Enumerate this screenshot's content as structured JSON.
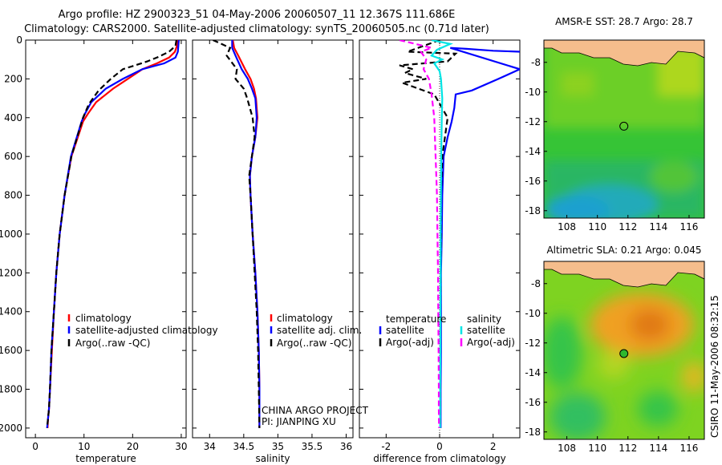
{
  "header": {
    "title_line1": "Argo profile: HZ 2900323_51 04-May-2006 20060507_11 12.367S 111.686E",
    "title_line2": "Climatology: CARS2000. Satellite-adjusted climatology: synTS_20060505.nc (0.71d later)"
  },
  "credit": "CSIRO 11-May-2006 08:32:15",
  "project_note": [
    "CHINA ARGO PROJECT",
    "PI: JIANPING XU"
  ],
  "colors": {
    "climatology": "#ff0000",
    "satellite": "#0000ff",
    "argo": "#000000",
    "cyan": "#00e5e5",
    "magenta": "#ff00ff",
    "land": "#f5bd8c"
  },
  "chart_data": [
    {
      "type": "line",
      "xlabel": "temperature",
      "ylabel": "",
      "xlim": [
        -2,
        31
      ],
      "ylim": [
        0,
        2050
      ],
      "y_reversed": true,
      "xticks": [
        0,
        10,
        20,
        30
      ],
      "yticks": [
        0,
        200,
        400,
        600,
        800,
        1000,
        1200,
        1400,
        1600,
        1800,
        2000
      ],
      "legend": [
        "climatology",
        "satellite-adjusted climatology",
        "Argo(..raw -QC)"
      ],
      "series": [
        {
          "name": "climatology",
          "color": "#ff0000",
          "dash": "",
          "x": [
            29.2,
            29.1,
            28.7,
            27.5,
            25.0,
            22.0,
            19.0,
            16.0,
            12.5,
            10.8,
            9.8,
            7.4,
            6.0,
            5.0,
            4.3,
            3.8,
            3.4,
            3.0,
            2.8,
            2.6,
            2.5
          ],
          "y": [
            0,
            30,
            60,
            90,
            120,
            150,
            200,
            250,
            320,
            380,
            420,
            600,
            800,
            1000,
            1200,
            1400,
            1600,
            1800,
            1900,
            1950,
            2000
          ]
        },
        {
          "name": "satellite-adjusted climatology",
          "color": "#0000ff",
          "dash": "",
          "x": [
            29.5,
            29.4,
            29.3,
            28.8,
            26.5,
            22.0,
            18.0,
            14.5,
            11.5,
            10.2,
            9.5,
            7.3,
            6.0,
            5.0,
            4.3,
            3.8,
            3.3,
            3.0,
            2.8,
            2.6,
            2.4
          ],
          "y": [
            0,
            30,
            60,
            90,
            120,
            150,
            200,
            250,
            320,
            380,
            420,
            600,
            800,
            1000,
            1200,
            1400,
            1600,
            1800,
            1900,
            1950,
            2000
          ]
        },
        {
          "name": "Argo(..raw -QC)",
          "color": "#000000",
          "dash": "7,4",
          "x": [
            29.0,
            28.8,
            27.5,
            25.0,
            23.0,
            20.5,
            18.0,
            15.5,
            13.0,
            11.0,
            9.8,
            7.4,
            6.0,
            5.0,
            4.3,
            3.8,
            3.3,
            3.0,
            2.8,
            2.6,
            2.4
          ],
          "y": [
            0,
            30,
            60,
            90,
            110,
            130,
            150,
            200,
            260,
            330,
            400,
            600,
            800,
            1000,
            1200,
            1400,
            1600,
            1800,
            1900,
            1950,
            2000
          ]
        }
      ]
    },
    {
      "type": "line",
      "xlabel": "salinity",
      "ylabel": "",
      "xlim": [
        33.75,
        36.1
      ],
      "ylim": [
        0,
        2050
      ],
      "y_reversed": true,
      "xticks": [
        34,
        34.5,
        35,
        35.5,
        36
      ],
      "xtick_labels": [
        "34",
        "34.5",
        "35",
        "35.5",
        "36"
      ],
      "legend": [
        "climatology",
        "satellite adj. clim.",
        "Argo(..raw -QC)"
      ],
      "series": [
        {
          "name": "climatology",
          "color": "#ff0000",
          "dash": "",
          "x": [
            34.34,
            34.36,
            34.42,
            34.52,
            34.6,
            34.65,
            34.68,
            34.7,
            34.67,
            34.62,
            34.59,
            34.6,
            34.63,
            34.67,
            34.7,
            34.72,
            34.73,
            34.73
          ],
          "y": [
            0,
            40,
            80,
            150,
            200,
            250,
            300,
            400,
            500,
            600,
            700,
            800,
            1000,
            1200,
            1400,
            1600,
            1800,
            2000
          ]
        },
        {
          "name": "satellite adj. clim.",
          "color": "#0000ff",
          "dash": "",
          "x": [
            34.33,
            34.33,
            34.38,
            34.47,
            34.56,
            34.62,
            34.67,
            34.69,
            34.67,
            34.62,
            34.59,
            34.6,
            34.63,
            34.67,
            34.7,
            34.72,
            34.73,
            34.73
          ],
          "y": [
            0,
            40,
            80,
            150,
            200,
            250,
            300,
            400,
            500,
            600,
            700,
            800,
            1000,
            1200,
            1400,
            1600,
            1800,
            2000
          ]
        },
        {
          "name": "Argo(..raw -QC)",
          "color": "#000000",
          "dash": "7,4",
          "x": [
            34.05,
            34.3,
            34.25,
            34.4,
            34.38,
            34.5,
            34.55,
            34.63,
            34.66,
            34.62,
            34.58,
            34.6,
            34.63,
            34.66,
            34.69,
            34.71,
            34.72,
            34.73
          ],
          "y": [
            0,
            40,
            80,
            150,
            200,
            250,
            300,
            400,
            500,
            600,
            700,
            800,
            1000,
            1200,
            1400,
            1600,
            1800,
            2000
          ]
        }
      ]
    },
    {
      "type": "line",
      "xlabel": "difference from climatology",
      "ylabel": "",
      "xlim": [
        -3,
        3
      ],
      "ylim": [
        0,
        2050
      ],
      "y_reversed": true,
      "xticks": [
        -2,
        0,
        2
      ],
      "legend_headers": [
        "temperature",
        "salinity"
      ],
      "legend": [
        "satellite",
        "Argo(-adj)",
        "satellite",
        "Argo(-adj)"
      ],
      "series": [
        {
          "name": "satellite",
          "color": "#0000ff",
          "dash": "",
          "x": [
            3.0,
            2.0,
            1.0,
            0.4,
            3.0,
            2.2,
            1.2,
            0.6,
            0.55,
            0.45,
            0.3,
            0.15,
            0.1,
            0.08,
            0.05,
            0.05,
            0.05,
            0.04,
            0.04
          ],
          "y": [
            60,
            55,
            45,
            40,
            150,
            200,
            260,
            280,
            350,
            420,
            500,
            600,
            800,
            1000,
            1200,
            1400,
            1600,
            1800,
            2000
          ]
        },
        {
          "name": "Argo(-adj)",
          "color": "#000000",
          "dash": "7,4",
          "x": [
            0.0,
            -1.2,
            0.6,
            0.3,
            -1.5,
            -1.0,
            -1.3,
            -0.5,
            -1.4,
            -0.2,
            0.3,
            0.1,
            0.05,
            0.05,
            0.04,
            0.03,
            0.03,
            0.02,
            0.02
          ],
          "y": [
            0,
            60,
            70,
            110,
            130,
            150,
            170,
            200,
            220,
            280,
            400,
            600,
            800,
            1000,
            1200,
            1400,
            1600,
            1800,
            2000
          ]
        },
        {
          "name": "satellite",
          "color": "#00e5e5",
          "dash": "",
          "x": [
            -0.3,
            0.4,
            -0.1,
            -0.3,
            0.1,
            -0.2,
            0.0,
            0.05,
            0.1,
            0.08,
            0.06,
            0.05,
            0.04,
            0.04,
            0.03,
            0.03,
            0.02,
            0.02
          ],
          "y": [
            0,
            20,
            50,
            80,
            100,
            120,
            160,
            200,
            300,
            400,
            600,
            800,
            1000,
            1200,
            1400,
            1600,
            1800,
            2000
          ]
        },
        {
          "name": "Argo(-adj)",
          "color": "#ff00ff",
          "dash": "7,4",
          "x": [
            -1.5,
            -0.3,
            -0.7,
            -0.5,
            -0.6,
            -0.4,
            -0.3,
            -0.2,
            -0.15,
            -0.1,
            -0.08,
            -0.06,
            -0.05,
            -0.04,
            -0.03,
            -0.03,
            -0.02
          ],
          "y": [
            0,
            40,
            60,
            100,
            150,
            200,
            280,
            400,
            600,
            800,
            1000,
            1200,
            1400,
            1600,
            1800,
            1900,
            2000
          ]
        }
      ]
    },
    {
      "type": "heatmap",
      "title": "AMSR-E SST: 28.7 Argo: 28.7",
      "xlim": [
        106.5,
        117
      ],
      "ylim": [
        -18.5,
        -6.5
      ],
      "xticks": [
        108,
        110,
        112,
        114,
        116
      ],
      "yticks": [
        -8,
        -10,
        -12,
        -14,
        -16,
        -18
      ],
      "marker": {
        "lon": 111.686,
        "lat": -12.367,
        "filled": false
      }
    },
    {
      "type": "heatmap",
      "title": "Altimetric SLA: 0.21 Argo: 0.045",
      "xlim": [
        106.5,
        117
      ],
      "ylim": [
        -18.5,
        -6.5
      ],
      "xticks": [
        108,
        110,
        112,
        114,
        116
      ],
      "yticks": [
        -8,
        -10,
        -12,
        -14,
        -16,
        -18
      ],
      "marker": {
        "lon": 111.686,
        "lat": -12.367,
        "filled": true
      }
    }
  ]
}
